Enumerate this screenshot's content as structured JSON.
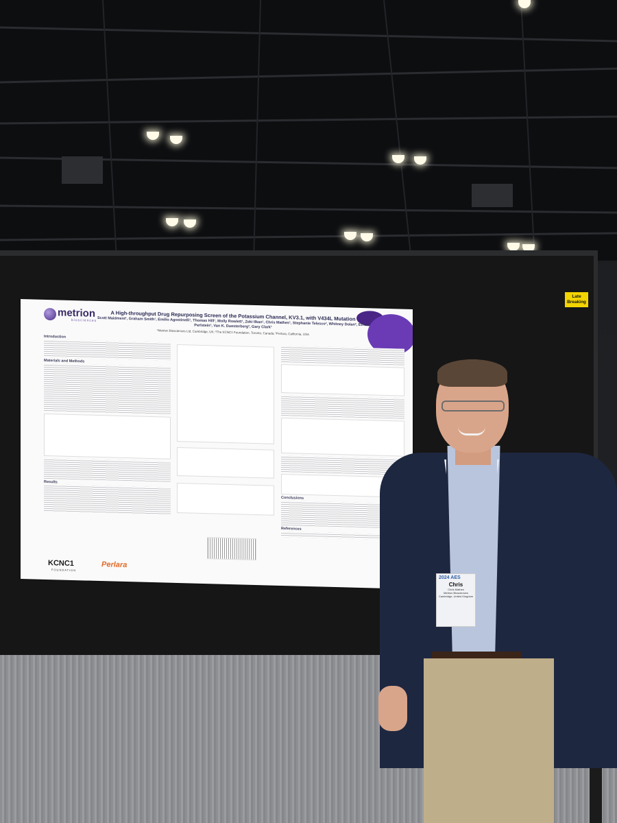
{
  "late_tag": "Late Breaking",
  "poster": {
    "logo": "metrion",
    "logo_sub": "biosciences",
    "title": "A High-throughput Drug Repurposing Screen of the Potassium Channel, KV3.1, with V434L Mutation",
    "authors": "Scott Maidment¹, Graham Smith¹, Emilio Agostinelli¹, Thomas Hill¹, Molly Rowlett¹, Zeki Ilkan¹, Chris Mathes¹, Stephanie Telesco², Whitney Dolan², Ethan Perlstein³, Van K. Duesterberg³, Gary Clark¹",
    "affiliations": "¹Metrion Biosciences Ltd, Cambridge, UK; ²The KCNC1 Foundation, Toronto, Canada; ³Perlara, California, USA",
    "sections": [
      "Introduction",
      "Materials and Methods",
      "Results",
      "Conclusions",
      "References"
    ],
    "footer_logos": [
      "KCNC1",
      "Perlara"
    ],
    "footer_sub": "FOUNDATION",
    "url": "www.metrionbiosciences.com"
  },
  "badge": {
    "event": "AES",
    "year": "2024",
    "name": "Chris",
    "lines": [
      "Chris Mathes",
      "Metrion Biosciences",
      "Cambridge, United Kingdom"
    ]
  }
}
